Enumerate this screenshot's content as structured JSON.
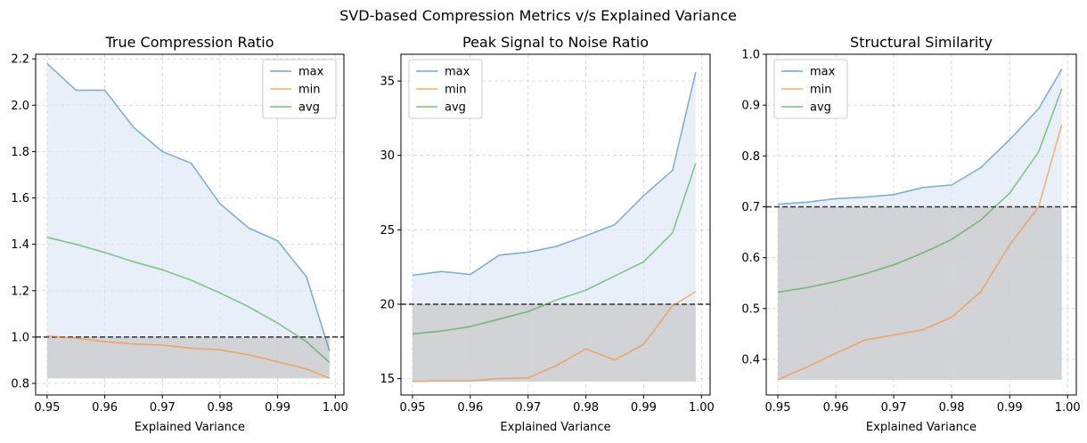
{
  "suptitle": "SVD-based Compression Metrics v/s Explained Variance",
  "colors": {
    "max": "#1f77b4",
    "min": "#ff7f0e",
    "avg": "#2ca02c",
    "threshold": "#333333",
    "fill_range": "#dbe7f5",
    "fill_below": "#c8c8c8"
  },
  "chart_data": [
    {
      "type": "line",
      "title": "True Compression Ratio",
      "xlabel": "Explained Variance",
      "ylabel": "",
      "xlim": [
        0.948,
        1.0015
      ],
      "ylim": [
        0.75,
        2.22
      ],
      "xticks": [
        0.95,
        0.96,
        0.97,
        0.98,
        0.99,
        1.0
      ],
      "xtick_labels": [
        "0.95",
        "0.96",
        "0.97",
        "0.98",
        "0.99",
        "1.00"
      ],
      "yticks": [
        0.8,
        1.0,
        1.2,
        1.4,
        1.6,
        1.8,
        2.0,
        2.2
      ],
      "ytick_labels": [
        "0.8",
        "1.0",
        "1.2",
        "1.4",
        "1.6",
        "1.8",
        "2.0",
        "2.2"
      ],
      "threshold": 1.0,
      "x": [
        0.95,
        0.955,
        0.96,
        0.965,
        0.97,
        0.975,
        0.98,
        0.985,
        0.99,
        0.995,
        0.999
      ],
      "series": [
        {
          "name": "max",
          "values": [
            2.18,
            2.065,
            2.065,
            1.905,
            1.8,
            1.75,
            1.575,
            1.47,
            1.415,
            1.26,
            0.94
          ]
        },
        {
          "name": "min",
          "values": [
            1.005,
            0.995,
            0.98,
            0.97,
            0.965,
            0.952,
            0.945,
            0.923,
            0.893,
            0.862,
            0.822
          ]
        },
        {
          "name": "avg",
          "values": [
            1.43,
            1.4,
            1.365,
            1.325,
            1.29,
            1.245,
            1.19,
            1.13,
            1.06,
            0.98,
            0.89
          ]
        }
      ],
      "legend": [
        "max",
        "min",
        "avg"
      ],
      "legend_loc": "top-right",
      "grid": true
    },
    {
      "type": "line",
      "title": "Peak Signal to Noise Ratio",
      "xlabel": "Explained Variance",
      "ylabel": "",
      "xlim": [
        0.948,
        1.0015
      ],
      "ylim": [
        13.9,
        36.8
      ],
      "xticks": [
        0.95,
        0.96,
        0.97,
        0.98,
        0.99,
        1.0
      ],
      "xtick_labels": [
        "0.95",
        "0.96",
        "0.97",
        "0.98",
        "0.99",
        "1.00"
      ],
      "yticks": [
        15,
        20,
        25,
        30,
        35
      ],
      "ytick_labels": [
        "15",
        "20",
        "25",
        "30",
        "35"
      ],
      "threshold": 20,
      "x": [
        0.95,
        0.955,
        0.96,
        0.965,
        0.97,
        0.975,
        0.98,
        0.985,
        0.99,
        0.995,
        0.999
      ],
      "series": [
        {
          "name": "max",
          "values": [
            21.95,
            22.2,
            22.0,
            23.3,
            23.5,
            23.9,
            24.6,
            25.35,
            27.3,
            29.0,
            35.6
          ]
        },
        {
          "name": "min",
          "values": [
            14.8,
            14.85,
            14.85,
            15.0,
            15.05,
            15.9,
            17.0,
            16.25,
            17.3,
            19.9,
            20.85
          ]
        },
        {
          "name": "avg",
          "values": [
            18.0,
            18.2,
            18.5,
            19.0,
            19.5,
            20.3,
            20.95,
            21.9,
            22.85,
            24.8,
            29.45
          ]
        }
      ],
      "legend": [
        "max",
        "min",
        "avg"
      ],
      "legend_loc": "top-left",
      "grid": true
    },
    {
      "type": "line",
      "title": "Structural Similarity",
      "xlabel": "Explained Variance",
      "ylabel": "",
      "xlim": [
        0.948,
        1.0015
      ],
      "ylim": [
        0.33,
        1.0
      ],
      "xticks": [
        0.95,
        0.96,
        0.97,
        0.98,
        0.99,
        1.0
      ],
      "xtick_labels": [
        "0.95",
        "0.96",
        "0.97",
        "0.98",
        "0.99",
        "1.00"
      ],
      "yticks": [
        0.4,
        0.5,
        0.6,
        0.7,
        0.8,
        0.9,
        1.0
      ],
      "ytick_labels": [
        "0.4",
        "0.5",
        "0.6",
        "0.7",
        "0.8",
        "0.9",
        "1.0"
      ],
      "threshold": 0.7,
      "x": [
        0.95,
        0.955,
        0.96,
        0.965,
        0.97,
        0.975,
        0.98,
        0.985,
        0.99,
        0.995,
        0.999
      ],
      "series": [
        {
          "name": "max",
          "values": [
            0.705,
            0.709,
            0.716,
            0.719,
            0.724,
            0.738,
            0.743,
            0.777,
            0.832,
            0.893,
            0.971
          ]
        },
        {
          "name": "min",
          "values": [
            0.36,
            0.385,
            0.412,
            0.438,
            0.448,
            0.458,
            0.483,
            0.533,
            0.625,
            0.7,
            0.862
          ]
        },
        {
          "name": "avg",
          "values": [
            0.532,
            0.541,
            0.553,
            0.568,
            0.586,
            0.609,
            0.636,
            0.674,
            0.727,
            0.808,
            0.932
          ]
        }
      ],
      "legend": [
        "max",
        "min",
        "avg"
      ],
      "legend_loc": "top-left",
      "grid": true
    }
  ]
}
